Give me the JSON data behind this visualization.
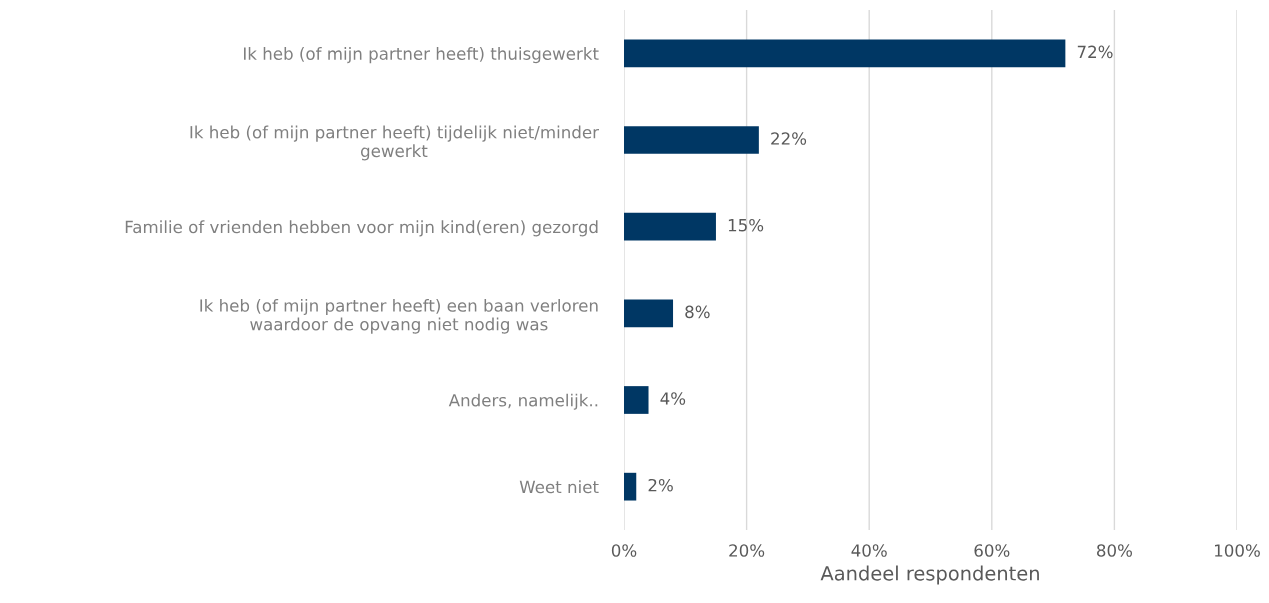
{
  "chart_data": {
    "type": "bar",
    "orientation": "horizontal",
    "categories": [
      "Ik heb (of mijn partner heeft) thuisgewerkt",
      "Ik heb (of mijn partner heeft) tijdelijk niet/minder\ngewerkt",
      "Familie of vrienden hebben voor mijn kind(eren) gezorgd",
      "Ik heb (of mijn partner heeft) een baan verloren\nwaardoor de opvang niet nodig was",
      "Anders, namelijk..",
      "Weet niet"
    ],
    "values": [
      72,
      22,
      15,
      8,
      4,
      2
    ],
    "value_labels": [
      "72%",
      "22%",
      "15%",
      "8%",
      "4%",
      "2%"
    ],
    "color": "#003764",
    "xlabel": "Aandeel respondenten",
    "xlim": [
      0,
      100
    ],
    "xticks": [
      {
        "value": 0,
        "label": "0%"
      },
      {
        "value": 20,
        "label": "20%"
      },
      {
        "value": 40,
        "label": "40%"
      },
      {
        "value": 60,
        "label": "60%"
      },
      {
        "value": 80,
        "label": "80%"
      },
      {
        "value": 100,
        "label": "100%"
      }
    ],
    "grid": "x"
  }
}
